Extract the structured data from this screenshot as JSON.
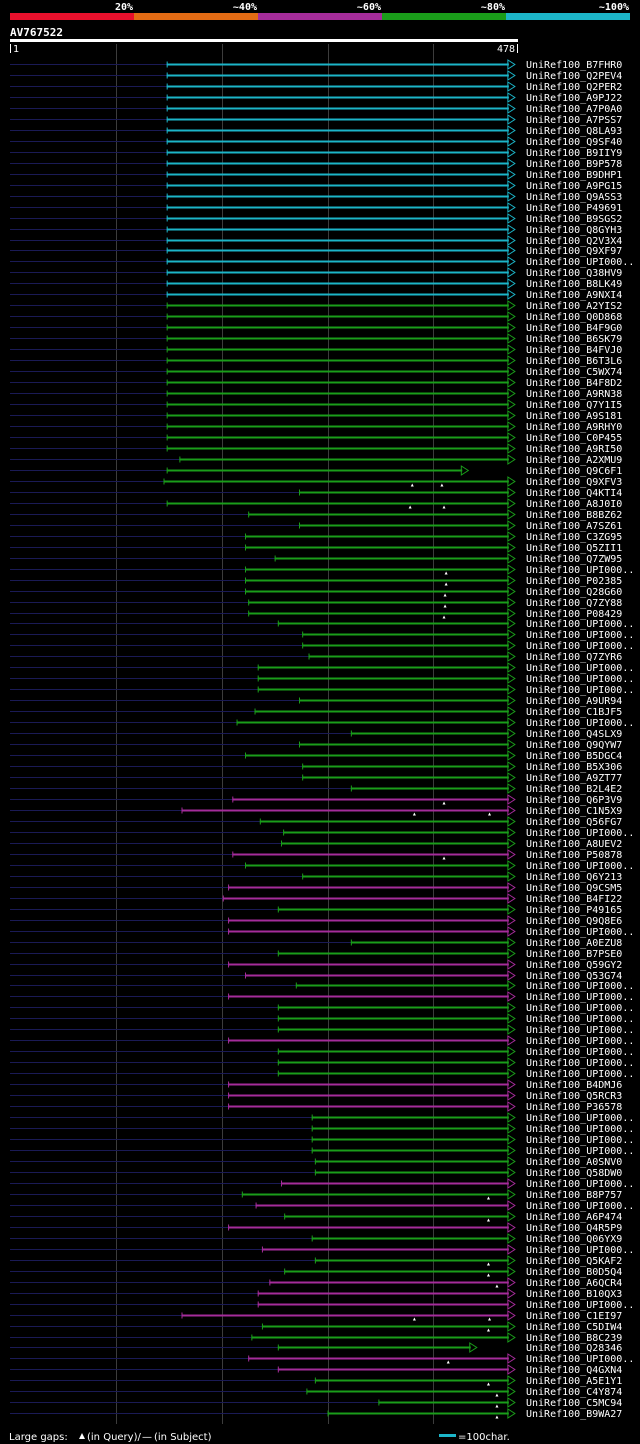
{
  "colors": {
    "red": "#e8102c",
    "orange": "#e36b14",
    "purple": "#a52c9a",
    "green": "#1a9d1a",
    "cyan": "#1cb5c8",
    "navy": "#1a1a55",
    "grid": "#3c3c3c"
  },
  "identity_legend": [
    {
      "label": "20%",
      "color": "red"
    },
    {
      "label": "~40%",
      "color": "orange"
    },
    {
      "label": "~60%",
      "color": "purple"
    },
    {
      "label": "~80%",
      "color": "green"
    },
    {
      "label": "~100%",
      "color": "cyan"
    }
  ],
  "chart_data": {
    "type": "alignment",
    "query_name": "AV767522",
    "query_start_label": "1",
    "query_end_label": "478",
    "query_length": 478,
    "grid_ticks": [
      100,
      200,
      300,
      400
    ],
    "footer": {
      "gaps_label": "Large gaps:",
      "in_query_label": "(in Query)/",
      "dash": "—",
      "in_subject_label": "(in Subject)",
      "scale_label": "=100char."
    },
    "hits": [
      {
        "name": "UniRef100_B7FHR0",
        "start": 148,
        "end": 476,
        "color": "cyan"
      },
      {
        "name": "UniRef100_Q2PEV4",
        "start": 148,
        "end": 476,
        "color": "cyan"
      },
      {
        "name": "UniRef100_Q2PER2",
        "start": 148,
        "end": 476,
        "color": "cyan"
      },
      {
        "name": "UniRef100_A9PJ22",
        "start": 148,
        "end": 476,
        "color": "cyan"
      },
      {
        "name": "UniRef100_A7P0A0",
        "start": 148,
        "end": 476,
        "color": "cyan"
      },
      {
        "name": "UniRef100_A7PSS7",
        "start": 148,
        "end": 476,
        "color": "cyan"
      },
      {
        "name": "UniRef100_Q8LA93",
        "start": 148,
        "end": 476,
        "color": "cyan"
      },
      {
        "name": "UniRef100_Q9SF40",
        "start": 148,
        "end": 476,
        "color": "cyan"
      },
      {
        "name": "UniRef100_B9IIY9",
        "start": 148,
        "end": 476,
        "color": "cyan"
      },
      {
        "name": "UniRef100_B9P578",
        "start": 148,
        "end": 476,
        "color": "cyan"
      },
      {
        "name": "UniRef100_B9DHP1",
        "start": 148,
        "end": 476,
        "color": "cyan"
      },
      {
        "name": "UniRef100_A9PG15",
        "start": 148,
        "end": 476,
        "color": "cyan"
      },
      {
        "name": "UniRef100_Q9ASS3",
        "start": 148,
        "end": 476,
        "color": "cyan"
      },
      {
        "name": "UniRef100_P49691",
        "start": 148,
        "end": 476,
        "color": "cyan"
      },
      {
        "name": "UniRef100_B9SGS2",
        "start": 148,
        "end": 476,
        "color": "cyan"
      },
      {
        "name": "UniRef100_Q8GYH3",
        "start": 148,
        "end": 476,
        "color": "cyan"
      },
      {
        "name": "UniRef100_Q2V3X4",
        "start": 148,
        "end": 476,
        "color": "cyan"
      },
      {
        "name": "UniRef100_Q9XF97",
        "start": 148,
        "end": 476,
        "color": "cyan"
      },
      {
        "name": "UniRef100_UPI000..",
        "start": 148,
        "end": 476,
        "color": "cyan"
      },
      {
        "name": "UniRef100_Q38HV9",
        "start": 148,
        "end": 476,
        "color": "cyan"
      },
      {
        "name": "UniRef100_B8LK49",
        "start": 148,
        "end": 476,
        "color": "cyan"
      },
      {
        "name": "UniRef100_A9NXI4",
        "start": 148,
        "end": 476,
        "color": "cyan"
      },
      {
        "name": "UniRef100_A2YIS2",
        "start": 148,
        "end": 476,
        "color": "green"
      },
      {
        "name": "UniRef100_Q0D868",
        "start": 148,
        "end": 476,
        "color": "green"
      },
      {
        "name": "UniRef100_B4F9G0",
        "start": 148,
        "end": 476,
        "color": "green"
      },
      {
        "name": "UniRef100_B6SK79",
        "start": 148,
        "end": 476,
        "color": "green"
      },
      {
        "name": "UniRef100_B4FVJ0",
        "start": 148,
        "end": 476,
        "color": "green"
      },
      {
        "name": "UniRef100_B6T3L6",
        "start": 148,
        "end": 476,
        "color": "green"
      },
      {
        "name": "UniRef100_C5WX74",
        "start": 148,
        "end": 476,
        "color": "green"
      },
      {
        "name": "UniRef100_B4F8D2",
        "start": 148,
        "end": 476,
        "color": "green"
      },
      {
        "name": "UniRef100_A9RN38",
        "start": 148,
        "end": 476,
        "color": "green"
      },
      {
        "name": "UniRef100_Q7Y1I5",
        "start": 148,
        "end": 476,
        "color": "green"
      },
      {
        "name": "UniRef100_A9S181",
        "start": 148,
        "end": 476,
        "color": "green"
      },
      {
        "name": "UniRef100_A9RHY0",
        "start": 148,
        "end": 476,
        "color": "green"
      },
      {
        "name": "UniRef100_C0P455",
        "start": 148,
        "end": 476,
        "color": "green"
      },
      {
        "name": "UniRef100_A9RI50",
        "start": 148,
        "end": 476,
        "color": "green"
      },
      {
        "name": "UniRef100_A2XMU9",
        "start": 160,
        "end": 476,
        "color": "green"
      },
      {
        "name": "UniRef100_Q9C6F1",
        "start": 148,
        "end": 432,
        "color": "green"
      },
      {
        "name": "UniRef100_Q9XFV3",
        "start": 145,
        "end": 476,
        "color": "green",
        "marks": [
          380,
          408
        ]
      },
      {
        "name": "UniRef100_Q4KTI4",
        "start": 273,
        "end": 476,
        "color": "green"
      },
      {
        "name": "UniRef100_A8J0I0",
        "start": 148,
        "end": 476,
        "color": "green",
        "marks": [
          378,
          410
        ]
      },
      {
        "name": "UniRef100_B8BZ62",
        "start": 225,
        "end": 476,
        "color": "green"
      },
      {
        "name": "UniRef100_A7SZ61",
        "start": 273,
        "end": 476,
        "color": "green"
      },
      {
        "name": "UniRef100_C3ZG95",
        "start": 222,
        "end": 476,
        "color": "green"
      },
      {
        "name": "UniRef100_Q5ZII1",
        "start": 222,
        "end": 476,
        "color": "green"
      },
      {
        "name": "UniRef100_Q7ZW95",
        "start": 250,
        "end": 476,
        "color": "green"
      },
      {
        "name": "UniRef100_UPI000..",
        "start": 222,
        "end": 476,
        "color": "green",
        "marks": [
          412
        ]
      },
      {
        "name": "UniRef100_P02385",
        "start": 222,
        "end": 476,
        "color": "green",
        "marks": [
          412
        ]
      },
      {
        "name": "UniRef100_Q28G60",
        "start": 222,
        "end": 476,
        "color": "green",
        "marks": [
          411
        ]
      },
      {
        "name": "UniRef100_Q7ZY88",
        "start": 225,
        "end": 476,
        "color": "green",
        "marks": [
          411
        ]
      },
      {
        "name": "UniRef100_P08429",
        "start": 225,
        "end": 476,
        "color": "green",
        "marks": [
          410
        ]
      },
      {
        "name": "UniRef100_UPI000..",
        "start": 253,
        "end": 476,
        "color": "green"
      },
      {
        "name": "UniRef100_UPI000..",
        "start": 276,
        "end": 476,
        "color": "green"
      },
      {
        "name": "UniRef100_UPI000..",
        "start": 276,
        "end": 476,
        "color": "green"
      },
      {
        "name": "UniRef100_Q7ZYR6",
        "start": 282,
        "end": 476,
        "color": "green"
      },
      {
        "name": "UniRef100_UPI000..",
        "start": 234,
        "end": 476,
        "color": "green"
      },
      {
        "name": "UniRef100_UPI000..",
        "start": 234,
        "end": 476,
        "color": "green"
      },
      {
        "name": "UniRef100_UPI000..",
        "start": 234,
        "end": 476,
        "color": "green"
      },
      {
        "name": "UniRef100_A9UR94",
        "start": 273,
        "end": 476,
        "color": "green"
      },
      {
        "name": "UniRef100_C1BJF5",
        "start": 231,
        "end": 476,
        "color": "green"
      },
      {
        "name": "UniRef100_UPI000..",
        "start": 214,
        "end": 476,
        "color": "green"
      },
      {
        "name": "UniRef100_Q4SLX9",
        "start": 322,
        "end": 476,
        "color": "green"
      },
      {
        "name": "UniRef100_Q9QYW7",
        "start": 273,
        "end": 476,
        "color": "green"
      },
      {
        "name": "UniRef100_B5DGC4",
        "start": 222,
        "end": 476,
        "color": "green"
      },
      {
        "name": "UniRef100_B5X306",
        "start": 276,
        "end": 476,
        "color": "green"
      },
      {
        "name": "UniRef100_A9ZT77",
        "start": 276,
        "end": 476,
        "color": "green"
      },
      {
        "name": "UniRef100_B2L4E2",
        "start": 322,
        "end": 476,
        "color": "green"
      },
      {
        "name": "UniRef100_Q6P3V9",
        "start": 210,
        "end": 476,
        "color": "purple",
        "marks": [
          410
        ]
      },
      {
        "name": "UniRef100_C1N5X9",
        "start": 162,
        "end": 476,
        "color": "purple",
        "marks": [
          382,
          453
        ]
      },
      {
        "name": "UniRef100_Q56FG7",
        "start": 236,
        "end": 476,
        "color": "green"
      },
      {
        "name": "UniRef100_UPI000..",
        "start": 258,
        "end": 476,
        "color": "green"
      },
      {
        "name": "UniRef100_A8UEV2",
        "start": 256,
        "end": 476,
        "color": "green"
      },
      {
        "name": "UniRef100_P50878",
        "start": 210,
        "end": 476,
        "color": "purple",
        "marks": [
          410
        ]
      },
      {
        "name": "UniRef100_UPI000..",
        "start": 222,
        "end": 476,
        "color": "green"
      },
      {
        "name": "UniRef100_Q6Y213",
        "start": 276,
        "end": 476,
        "color": "green"
      },
      {
        "name": "UniRef100_Q9CSM5",
        "start": 206,
        "end": 476,
        "color": "purple"
      },
      {
        "name": "UniRef100_B4FI22",
        "start": 201,
        "end": 476,
        "color": "purple"
      },
      {
        "name": "UniRef100_P49165",
        "start": 253,
        "end": 476,
        "color": "green"
      },
      {
        "name": "UniRef100_Q9Q8E6",
        "start": 206,
        "end": 476,
        "color": "purple"
      },
      {
        "name": "UniRef100_UPI000..",
        "start": 206,
        "end": 476,
        "color": "purple"
      },
      {
        "name": "UniRef100_A0EZU8",
        "start": 322,
        "end": 476,
        "color": "green"
      },
      {
        "name": "UniRef100_B7PSE0",
        "start": 253,
        "end": 476,
        "color": "green"
      },
      {
        "name": "UniRef100_Q59GY2",
        "start": 206,
        "end": 476,
        "color": "purple"
      },
      {
        "name": "UniRef100_Q53G74",
        "start": 222,
        "end": 476,
        "color": "purple"
      },
      {
        "name": "UniRef100_UPI000..",
        "start": 270,
        "end": 476,
        "color": "green"
      },
      {
        "name": "UniRef100_UPI000..",
        "start": 206,
        "end": 476,
        "color": "purple"
      },
      {
        "name": "UniRef100_UPI000..",
        "start": 253,
        "end": 476,
        "color": "green"
      },
      {
        "name": "UniRef100_UPI000..",
        "start": 253,
        "end": 476,
        "color": "green"
      },
      {
        "name": "UniRef100_UPI000..",
        "start": 253,
        "end": 476,
        "color": "green"
      },
      {
        "name": "UniRef100_UPI000..",
        "start": 206,
        "end": 476,
        "color": "purple"
      },
      {
        "name": "UniRef100_UPI000..",
        "start": 253,
        "end": 476,
        "color": "green"
      },
      {
        "name": "UniRef100_UPI000..",
        "start": 253,
        "end": 476,
        "color": "green"
      },
      {
        "name": "UniRef100_UPI000..",
        "start": 253,
        "end": 476,
        "color": "green"
      },
      {
        "name": "UniRef100_B4DMJ6",
        "start": 206,
        "end": 476,
        "color": "purple"
      },
      {
        "name": "UniRef100_Q5RCR3",
        "start": 206,
        "end": 476,
        "color": "purple"
      },
      {
        "name": "UniRef100_P36578",
        "start": 206,
        "end": 476,
        "color": "purple"
      },
      {
        "name": "UniRef100_UPI000..",
        "start": 285,
        "end": 476,
        "color": "green"
      },
      {
        "name": "UniRef100_UPI000..",
        "start": 285,
        "end": 476,
        "color": "green"
      },
      {
        "name": "UniRef100_UPI000..",
        "start": 285,
        "end": 476,
        "color": "green"
      },
      {
        "name": "UniRef100_UPI000..",
        "start": 285,
        "end": 476,
        "color": "green"
      },
      {
        "name": "UniRef100_A0SNV0",
        "start": 288,
        "end": 476,
        "color": "green"
      },
      {
        "name": "UniRef100_Q58DW0",
        "start": 288,
        "end": 476,
        "color": "green"
      },
      {
        "name": "UniRef100_UPI000..",
        "start": 256,
        "end": 476,
        "color": "purple"
      },
      {
        "name": "UniRef100_B8P757",
        "start": 219,
        "end": 476,
        "color": "green",
        "marks": [
          452
        ]
      },
      {
        "name": "UniRef100_UPI000..",
        "start": 232,
        "end": 476,
        "color": "purple"
      },
      {
        "name": "UniRef100_A6P474",
        "start": 259,
        "end": 476,
        "color": "green",
        "marks": [
          452
        ]
      },
      {
        "name": "UniRef100_Q4R5P9",
        "start": 206,
        "end": 476,
        "color": "purple"
      },
      {
        "name": "UniRef100_Q06YX9",
        "start": 285,
        "end": 476,
        "color": "green"
      },
      {
        "name": "UniRef100_UPI000..",
        "start": 238,
        "end": 476,
        "color": "purple"
      },
      {
        "name": "UniRef100_Q5KAF2",
        "start": 288,
        "end": 476,
        "color": "green",
        "marks": [
          452
        ]
      },
      {
        "name": "UniRef100_B0D5Q4",
        "start": 259,
        "end": 476,
        "color": "green",
        "marks": [
          452
        ]
      },
      {
        "name": "UniRef100_A6QCR4",
        "start": 245,
        "end": 476,
        "color": "purple",
        "marks": [
          460
        ]
      },
      {
        "name": "UniRef100_B10QX3",
        "start": 234,
        "end": 476,
        "color": "purple"
      },
      {
        "name": "UniRef100_UPI000..",
        "start": 234,
        "end": 476,
        "color": "purple"
      },
      {
        "name": "UniRef100_C1EI97",
        "start": 162,
        "end": 476,
        "color": "purple",
        "marks": [
          382,
          453
        ]
      },
      {
        "name": "UniRef100_C5DIW4",
        "start": 238,
        "end": 476,
        "color": "green",
        "marks": [
          452
        ]
      },
      {
        "name": "UniRef100_B8C239",
        "start": 228,
        "end": 476,
        "color": "green"
      },
      {
        "name": "UniRef100_Q28346",
        "start": 253,
        "end": 440,
        "color": "green"
      },
      {
        "name": "UniRef100_UPI000..",
        "start": 225,
        "end": 476,
        "color": "purple",
        "marks": [
          414
        ]
      },
      {
        "name": "UniRef100_Q4GXN4",
        "start": 253,
        "end": 476,
        "color": "purple"
      },
      {
        "name": "UniRef100_A5E1Y1",
        "start": 288,
        "end": 476,
        "color": "green",
        "marks": [
          452
        ]
      },
      {
        "name": "UniRef100_C4Y874",
        "start": 280,
        "end": 476,
        "color": "green",
        "marks": [
          460
        ]
      },
      {
        "name": "UniRef100_C5MC94",
        "start": 348,
        "end": 476,
        "color": "green",
        "marks": [
          460
        ]
      },
      {
        "name": "UniRef100_B9WA27",
        "start": 300,
        "end": 476,
        "color": "green",
        "marks": [
          460
        ]
      }
    ]
  }
}
